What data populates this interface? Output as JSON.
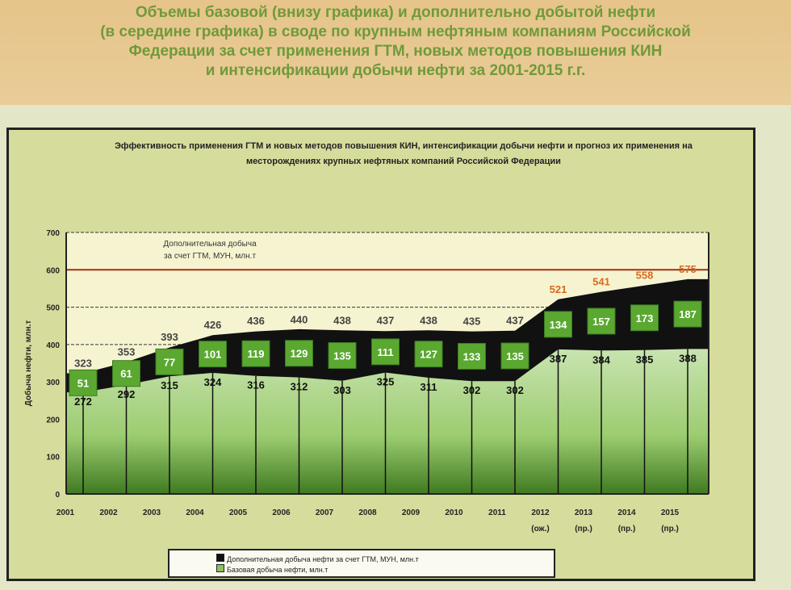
{
  "header": {
    "text": "Объемы базовой (внизу графика) и дополнительно добытой    нефти\n(в середине графика) в своде по крупным нефтяным компаниям Российской\nФедерации за счет применения ГТМ, новых методов повышения КИН\nи интенсификации добычи нефти за 2001-2015 г.г."
  },
  "chart_data": {
    "type": "area",
    "stacked": true,
    "title": "Эффективность применения ГТМ и новых методов повышения КИН, интенсификации добычи нефти и прогноз их применения на месторождениях крупных нефтяных компаний Российской Федерации",
    "ylabel": "Добыча нефти, млн.т",
    "xlabel": "",
    "ylim": [
      0,
      700
    ],
    "yticks": [
      0,
      100,
      200,
      300,
      400,
      500,
      600,
      700
    ],
    "categories": [
      "2001",
      "2002",
      "2003",
      "2004",
      "2005",
      "2006",
      "2007",
      "2008",
      "2009",
      "2010",
      "2011",
      "2012\n(ож.)",
      "2013\n(пр.)",
      "2014\n(пр.)",
      "2015\n(пр.)"
    ],
    "series": [
      {
        "name": "Базовая добыча нефти, млн.т",
        "values": [
          272,
          292,
          315,
          324,
          316,
          312,
          303,
          325,
          311,
          302,
          302,
          387,
          384,
          385,
          388
        ],
        "color": "#8fc060"
      },
      {
        "name": "Дополнительная добыча нефти за счет ГТМ, МУН, млн.т",
        "values": [
          51,
          61,
          77,
          101,
          119,
          129,
          135,
          111,
          127,
          133,
          135,
          134,
          157,
          173,
          187
        ],
        "color": "#111111"
      }
    ],
    "totals": [
      323,
      353,
      393,
      426,
      436,
      440,
      438,
      437,
      438,
      435,
      437,
      521,
      541,
      558,
      575
    ],
    "annotation": "Дополнительная добыча\nза счет ГТМ, МУН, млн.т",
    "reference_line": 600,
    "legend_position": "bottom",
    "grid": true
  }
}
